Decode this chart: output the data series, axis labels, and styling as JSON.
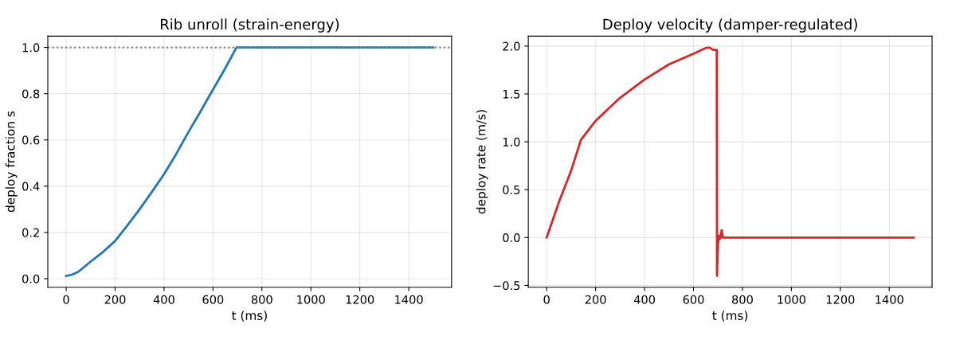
{
  "chart_data": [
    {
      "type": "line",
      "title": "Rib unroll (strain-energy)",
      "xlabel": "t (ms)",
      "ylabel": "deploy fraction s",
      "series": [
        {
          "color": "#1f77b4",
          "x": [
            0,
            25,
            50,
            100,
            150,
            200,
            250,
            300,
            350,
            400,
            450,
            500,
            550,
            600,
            650,
            696,
            1500
          ],
          "values": [
            0.012,
            0.018,
            0.03,
            0.074,
            0.115,
            0.163,
            0.23,
            0.3,
            0.375,
            0.452,
            0.54,
            0.635,
            0.725,
            0.818,
            0.91,
            1.0,
            1.0
          ]
        }
      ],
      "xlim": [
        -75,
        1575
      ],
      "ylim": [
        -0.037,
        1.049
      ],
      "xticks": [
        0,
        200,
        400,
        600,
        800,
        1000,
        1200,
        1400
      ],
      "yticks": [
        {
          "value": 0,
          "label": "0.0"
        },
        {
          "value": 0.2,
          "label": "0.2"
        },
        {
          "value": 0.4,
          "label": "0.4"
        },
        {
          "value": 0.6,
          "label": "0.6"
        },
        {
          "value": 0.8,
          "label": "0.8"
        },
        {
          "value": 1.0,
          "label": "1.0"
        }
      ],
      "ref_lines": [
        {
          "axis": "y",
          "value": 1.0,
          "label": null,
          "color": "#808080",
          "line_style": "dotted"
        }
      ],
      "grid": true,
      "line_style": "solid",
      "marker": "none"
    },
    {
      "type": "line",
      "title": "Deploy velocity (damper-regulated)",
      "xlabel": "t (ms)",
      "ylabel": "deploy rate (m/s)",
      "series": [
        {
          "color": "#d62728",
          "x": [
            0,
            50,
            100,
            140,
            200,
            300,
            400,
            500,
            600,
            650,
            665,
            680,
            695,
            696,
            700,
            704,
            709,
            715,
            720,
            1500
          ],
          "values": [
            0,
            0.37,
            0.7,
            1.02,
            1.22,
            1.46,
            1.65,
            1.81,
            1.92,
            1.98,
            1.985,
            1.96,
            1.96,
            -0.4,
            -0.06,
            0.02,
            -0.01,
            0.077,
            0,
            0
          ]
        }
      ],
      "xlim": [
        -75,
        1575
      ],
      "ylim": [
        -0.519,
        2.104
      ],
      "xticks": [
        0,
        200,
        400,
        600,
        800,
        1000,
        1200,
        1400
      ],
      "yticks": [
        {
          "value": -0.5,
          "label": "−0.5"
        },
        {
          "value": 0,
          "label": "0.0"
        },
        {
          "value": 0.5,
          "label": "0.5"
        },
        {
          "value": 1.0,
          "label": "1.0"
        },
        {
          "value": 1.5,
          "label": "1.5"
        },
        {
          "value": 2.0,
          "label": "2.0"
        }
      ],
      "grid": true,
      "line_style": "solid",
      "marker": "none"
    }
  ]
}
